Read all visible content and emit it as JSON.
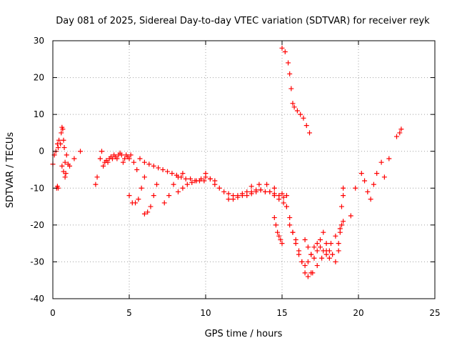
{
  "chart_data": {
    "type": "scatter",
    "title": "Day 081 of 2025, Sidereal Day-to-day VTEC variation (SDTVAR) for receiver reyk",
    "xlabel": "GPS time / hours",
    "ylabel": "SDTVAR / TECUs",
    "xlim": [
      0,
      25
    ],
    "ylim": [
      -40,
      30
    ],
    "xticks": [
      0,
      5,
      10,
      15,
      20,
      25
    ],
    "yticks": [
      -40,
      -30,
      -20,
      -10,
      0,
      10,
      20,
      30
    ],
    "xtick_labels": [
      "0",
      "5",
      "10",
      "15",
      "20",
      "25"
    ],
    "ytick_labels": [
      "-40",
      "-30",
      "-20",
      "-10",
      "0",
      "10",
      "20",
      "30"
    ],
    "grid": true,
    "marker": "+",
    "color": "#ff0000",
    "series": [
      {
        "name": "SDTVAR",
        "x": [
          0.0,
          0.1,
          0.2,
          0.3,
          0.35,
          0.4,
          0.5,
          0.55,
          0.6,
          0.65,
          0.7,
          0.75,
          0.8,
          0.85,
          0.9,
          1.0,
          1.1,
          1.4,
          1.8,
          0.25,
          0.3,
          0.35,
          0.6,
          0.7,
          0.8,
          2.8,
          2.9,
          3.1,
          3.2,
          3.3,
          3.4,
          3.5,
          3.6,
          3.7,
          3.8,
          3.9,
          4.0,
          4.1,
          4.2,
          4.3,
          4.4,
          4.5,
          4.6,
          4.7,
          4.8,
          4.9,
          5.0,
          5.1,
          5.3,
          5.5,
          5.0,
          5.2,
          5.4,
          5.6,
          5.8,
          6.0,
          5.7,
          6.0,
          6.3,
          6.6,
          6.9,
          7.2,
          7.5,
          7.8,
          8.1,
          8.4,
          8.7,
          9.0,
          9.3,
          9.6,
          9.9,
          6.0,
          6.2,
          6.4,
          6.6,
          6.8,
          7.3,
          7.6,
          7.9,
          8.2,
          8.5,
          8.2,
          8.5,
          8.8,
          9.1,
          9.4,
          9.7,
          10.0,
          10.3,
          10.6,
          10.0,
          10.3,
          10.6,
          10.9,
          11.2,
          11.5,
          11.8,
          12.1,
          12.4,
          12.7,
          13.0,
          13.3,
          13.6,
          13.9,
          14.2,
          14.5,
          14.8,
          15.1,
          11.5,
          11.8,
          12.1,
          12.4,
          12.7,
          13.0,
          13.3,
          13.6,
          13.9,
          14.2,
          14.5,
          14.8,
          15.1,
          15.3,
          13.0,
          13.5,
          14.0,
          14.5,
          15.0,
          15.3,
          14.5,
          14.6,
          14.7,
          14.8,
          14.9,
          15.0,
          15.0,
          15.2,
          15.4,
          15.5,
          15.6,
          15.7,
          15.8,
          16.0,
          16.2,
          16.4,
          16.6,
          16.8,
          15.3,
          15.5,
          15.7,
          15.9,
          16.1,
          16.3,
          16.5,
          16.7,
          16.9,
          17.1,
          17.3,
          17.5,
          17.7,
          17.9,
          18.1,
          15.5,
          15.7,
          15.9,
          16.1,
          16.3,
          16.5,
          16.7,
          16.9,
          16.5,
          16.7,
          16.9,
          17.1,
          17.3,
          17.5,
          17.7,
          17.9,
          18.1,
          18.3,
          18.5,
          18.7,
          18.9,
          19.0,
          17.0,
          17.3,
          17.6,
          17.9,
          18.2,
          18.5,
          18.8,
          19.0,
          19.5,
          18.7,
          18.8,
          18.9,
          19.0,
          19.8,
          20.2,
          20.4,
          20.6,
          20.8,
          21.0,
          21.2,
          21.5,
          21.7,
          22.0,
          22.5,
          22.7,
          22.8
        ],
        "y": [
          -3.5,
          -1,
          0,
          2,
          1,
          3,
          2,
          5,
          6.5,
          6,
          3,
          1,
          -3,
          -6,
          -1,
          -3.5,
          -4,
          -2,
          0,
          -10,
          -9.5,
          -10,
          -4,
          -5.5,
          -7,
          -9,
          -7,
          -2,
          0,
          -4,
          -3,
          -2.5,
          -3,
          -2,
          -1.5,
          -2,
          -1,
          -1.5,
          -2,
          -1,
          -0.5,
          -1,
          -3,
          -2,
          -1,
          -1.5,
          -2,
          -1,
          -3,
          -5,
          -12,
          -14,
          -14,
          -13,
          -10,
          -7,
          -2,
          -3,
          -3.5,
          -4,
          -4.5,
          -5,
          -5.5,
          -6,
          -6.5,
          -7,
          -7.5,
          -7.5,
          -8,
          -8,
          -8,
          -17,
          -16.5,
          -15,
          -12,
          -9,
          -14,
          -12,
          -9,
          -7,
          -6,
          -11,
          -10,
          -9,
          -8.5,
          -8,
          -7.5,
          -7,
          -7.5,
          -8,
          -6,
          -7.5,
          -9,
          -10,
          -11,
          -11.5,
          -12,
          -12,
          -11.5,
          -11,
          -11,
          -11,
          -10.5,
          -11,
          -11,
          -11.5,
          -12,
          -12.5,
          -13,
          -13,
          -12.5,
          -12,
          -12,
          -11.5,
          -10.5,
          -10.5,
          -11,
          -11,
          -12,
          -13,
          -14,
          -15,
          -9.5,
          -9,
          -9,
          -10,
          -11.5,
          -12,
          -18,
          -20,
          -22,
          -23,
          -24,
          -25,
          28,
          27,
          24,
          21,
          17,
          13,
          12,
          11,
          10,
          9,
          7,
          5,
          -15,
          -18,
          -22,
          -25,
          -28,
          -30,
          -31,
          -30,
          -28,
          -26,
          -25,
          -26,
          -27,
          -28,
          -29,
          -20,
          -22,
          -24,
          -27,
          -30,
          -33,
          -34,
          -33,
          -24,
          -26,
          -28,
          -29,
          -27,
          -24,
          -22,
          -25,
          -27,
          -28,
          -30,
          -27,
          -20,
          -12,
          -33,
          -31,
          -29,
          -27,
          -25,
          -23,
          -21,
          -19,
          -17.5,
          -25,
          -22,
          -15,
          -10,
          -10,
          -6,
          -8,
          -11,
          -13,
          -9,
          -6,
          -3,
          -7,
          -2,
          4,
          5,
          6
        ]
      }
    ]
  }
}
